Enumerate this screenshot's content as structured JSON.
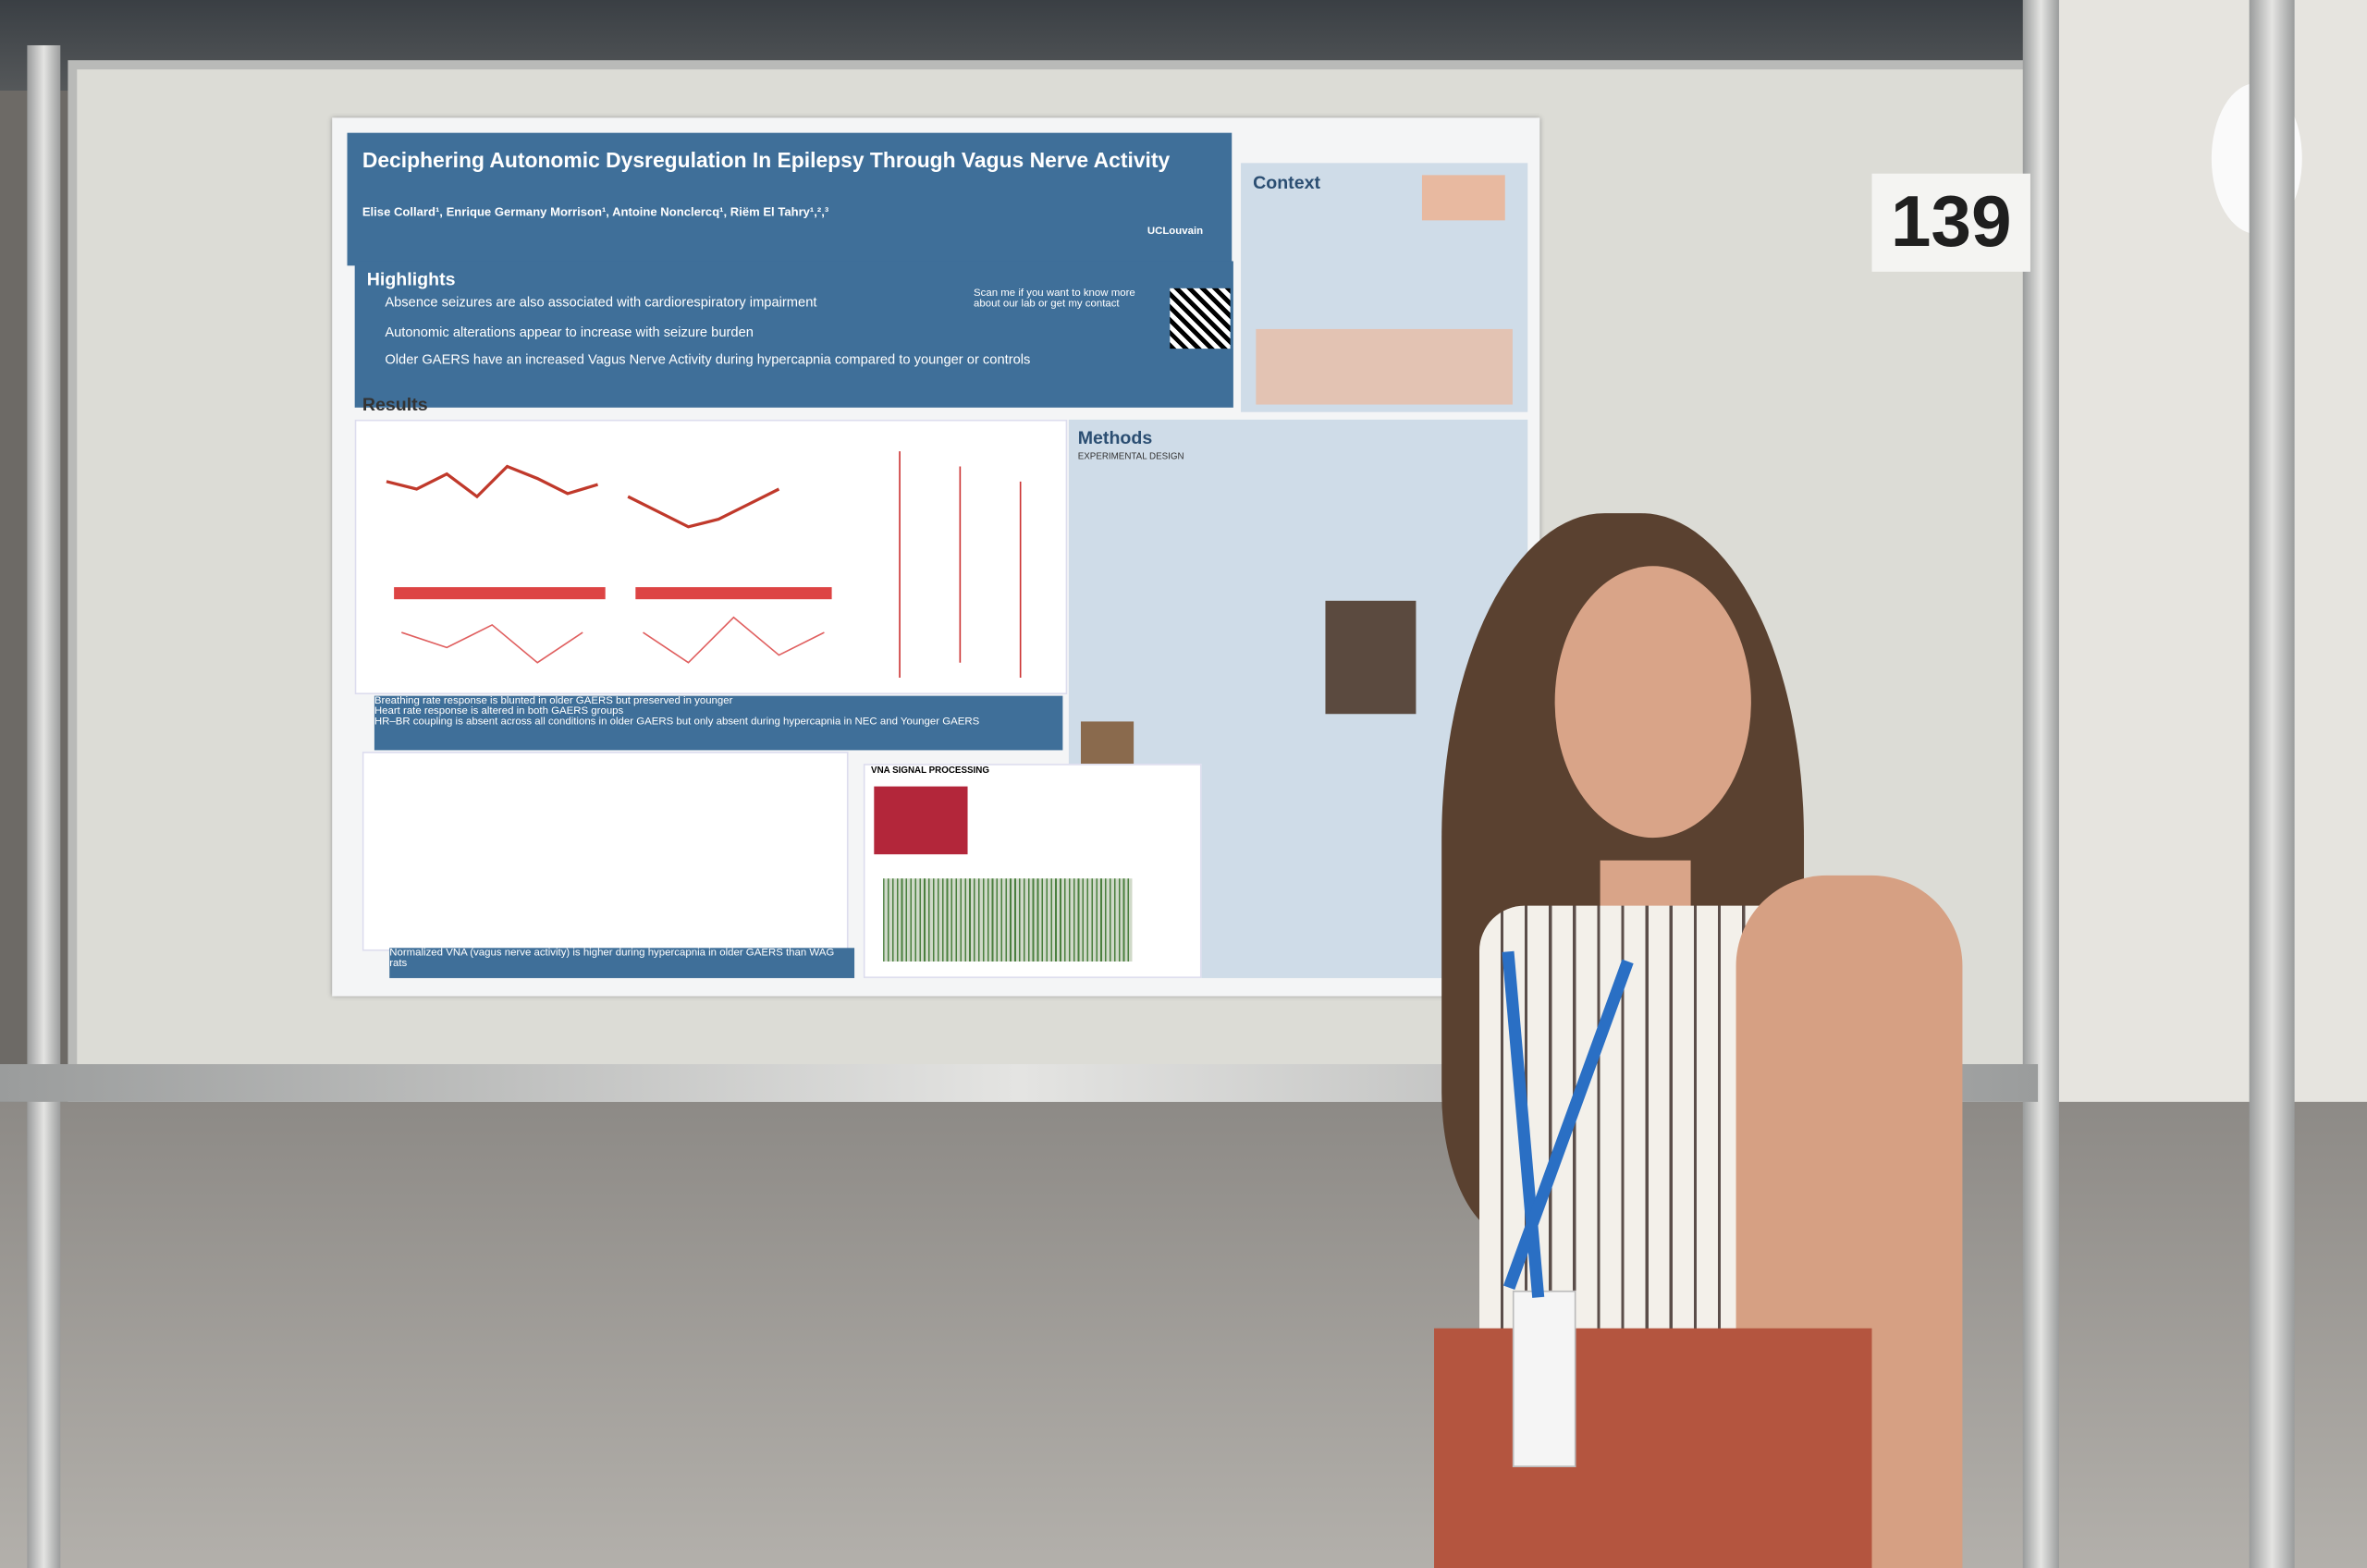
{
  "board_number": "139",
  "poster": {
    "title": "Deciphering Autonomic Dysregulation In Epilepsy Through Vagus Nerve Activity",
    "authors": "Elise Collard¹, Enrique Germany Morrison¹, Antoine Nonclercq¹, Riëm El Tahry¹,²,³",
    "logo": "UCLouvain",
    "highlights": {
      "heading": "Highlights",
      "items": [
        "Absence seizures are also associated with cardiorespiratory impairment",
        "Autonomic alterations appear to increase with seizure burden",
        "Older GAERS have an increased Vagus Nerve Activity during hypercapnia compared to younger or controls"
      ]
    },
    "qr_text": "Scan me if you want to know more about our lab or get my contact",
    "context_heading": "Context",
    "results_heading": "Results",
    "results_summary": [
      "Breathing rate response is blunted in older GAERS but preserved in younger",
      "Heart rate response is altered in both GAERS groups",
      "HR–BR coupling is absent across all conditions in older GAERS but only absent during hypercapnia in NEC and Younger GAERS"
    ],
    "bottom_summary": "Normalized VNA (vagus nerve activity) is higher during hypercapnia in older GAERS than WAG rats",
    "methods_heading": "Methods",
    "methods_subheading": "EXPERIMENTAL DESIGN",
    "vna_heading": "VNA SIGNAL PROCESSING"
  }
}
